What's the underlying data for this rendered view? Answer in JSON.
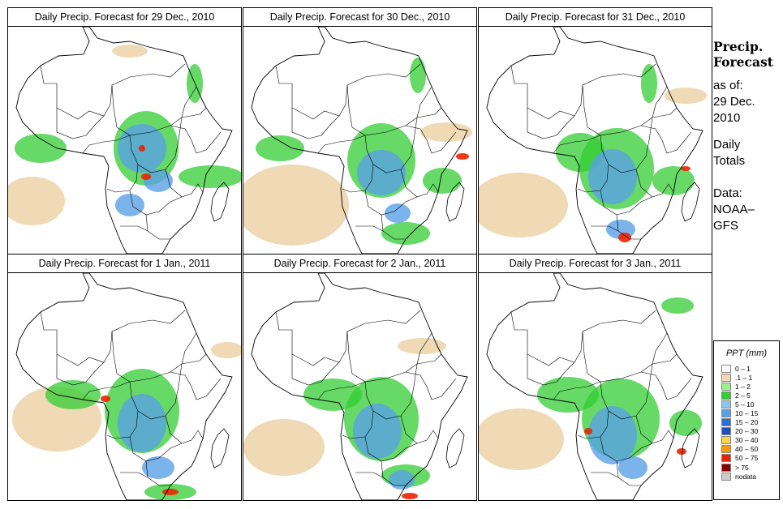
{
  "panels": [
    {
      "title": "Daily Precip. Forecast for  29 Dec., 2010"
    },
    {
      "title": "Daily Precip. Forecast for  30 Dec., 2010"
    },
    {
      "title": "Daily Precip. Forecast for  31 Dec., 2010"
    },
    {
      "title": "Daily Precip. Forecast for  1 Jan., 2011"
    },
    {
      "title": "Daily Precip. Forecast for  2 Jan., 2011"
    },
    {
      "title": "Daily Precip. Forecast for  3 Jan., 2011"
    }
  ],
  "side": {
    "title_line1": "Precip.",
    "title_line2": "Forecast",
    "asof": "as of:",
    "date1": "29 Dec.",
    "date2": "2010",
    "daily1": "Daily",
    "daily2": "Totals",
    "data1": "Data:",
    "data2": "NOAA–",
    "data3": "GFS"
  },
  "legend": {
    "title": "PPT (mm)",
    "items": [
      {
        "label": "0 – 1",
        "color": "#ffffff"
      },
      {
        "label": ".1 – 1",
        "color": "#f0d9b5"
      },
      {
        "label": "1 – 2",
        "color": "#9cf08c"
      },
      {
        "label": "2 – 5",
        "color": "#33cc33"
      },
      {
        "label": "5 – 10",
        "color": "#88c8f0"
      },
      {
        "label": "10 – 15",
        "color": "#5aa0e6"
      },
      {
        "label": "15 – 20",
        "color": "#2a6fd8"
      },
      {
        "label": "20 – 30",
        "color": "#1f4fbf"
      },
      {
        "label": "30 – 40",
        "color": "#ffd24a"
      },
      {
        "label": "40 – 50",
        "color": "#ff9900"
      },
      {
        "label": "50 – 75",
        "color": "#ee2200"
      },
      {
        "label": "> 75",
        "color": "#8b0000"
      },
      {
        "label": "nodata",
        "color": "#cccccc"
      }
    ]
  }
}
